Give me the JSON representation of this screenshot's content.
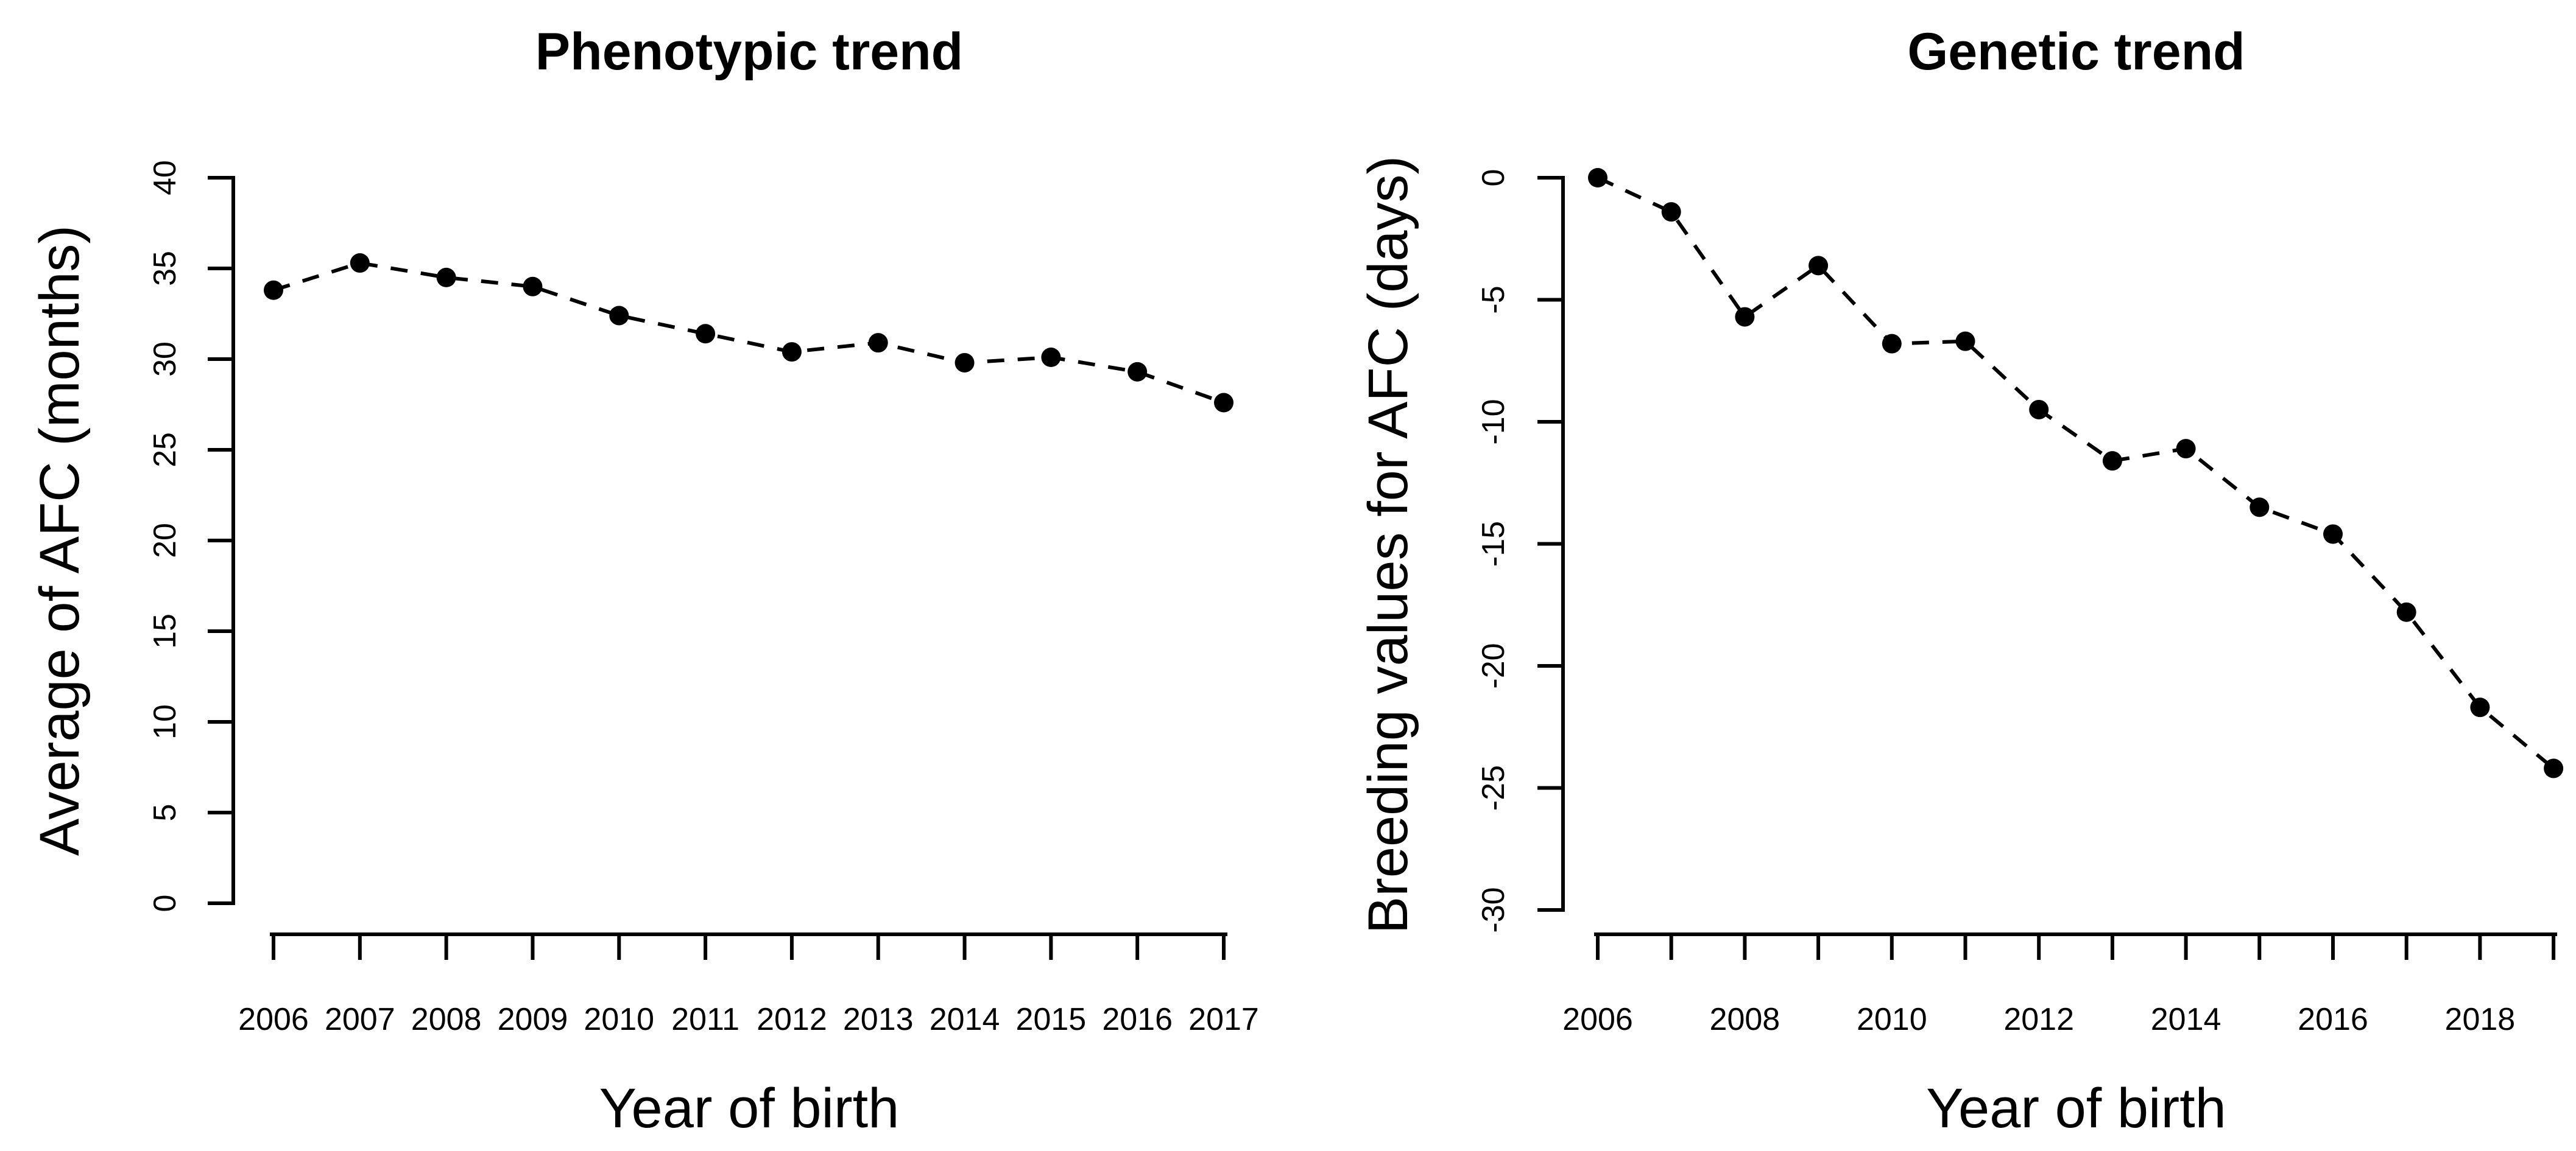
{
  "figure": {
    "background": "#ffffff",
    "foreground": "#000000"
  },
  "chart_data": [
    {
      "id": "phenotypic-trend",
      "type": "line",
      "title": "Phenotypic trend",
      "xlabel": "Year of birth",
      "ylabel": "Average of AFC (months)",
      "x": [
        2006,
        2007,
        2008,
        2009,
        2010,
        2011,
        2012,
        2013,
        2014,
        2015,
        2016,
        2017
      ],
      "y": [
        33.8,
        35.3,
        34.5,
        34.0,
        32.4,
        31.4,
        30.4,
        30.9,
        29.8,
        30.1,
        29.3,
        27.6
      ],
      "ylim": [
        0,
        40
      ],
      "yticks": [
        0,
        5,
        10,
        15,
        20,
        25,
        30,
        35,
        40
      ],
      "x_tick_labels": [
        "2006",
        "2007",
        "2008",
        "2009",
        "2010",
        "2011",
        "2012",
        "2013",
        "2014",
        "2015",
        "2016",
        "2017"
      ],
      "marker": "filled-circle",
      "line_style": "dashed",
      "line_color": "#000000",
      "grid": false,
      "legend": null
    },
    {
      "id": "genetic-trend",
      "type": "line",
      "title": "Genetic trend",
      "xlabel": "Year of birth",
      "ylabel": "Breeding values for AFC (days)",
      "x": [
        2006,
        2007,
        2008,
        2009,
        2010,
        2011,
        2012,
        2013,
        2014,
        2015,
        2016,
        2017,
        2018,
        2019
      ],
      "y": [
        0.0,
        -1.4,
        -5.7,
        -3.6,
        -6.8,
        -6.7,
        -9.5,
        -11.6,
        -11.1,
        -13.5,
        -14.6,
        -17.8,
        -21.7,
        -24.2
      ],
      "ylim": [
        -30,
        0
      ],
      "yticks": [
        0,
        -5,
        -10,
        -15,
        -20,
        -25,
        -30
      ],
      "x_tick_labels": [
        "2006",
        "",
        "2008",
        "",
        "2010",
        "",
        "2012",
        "",
        "2014",
        "",
        "2016",
        "",
        "2018",
        ""
      ],
      "marker": "filled-circle",
      "line_style": "dashed",
      "line_color": "#000000",
      "grid": false,
      "legend": null
    }
  ]
}
